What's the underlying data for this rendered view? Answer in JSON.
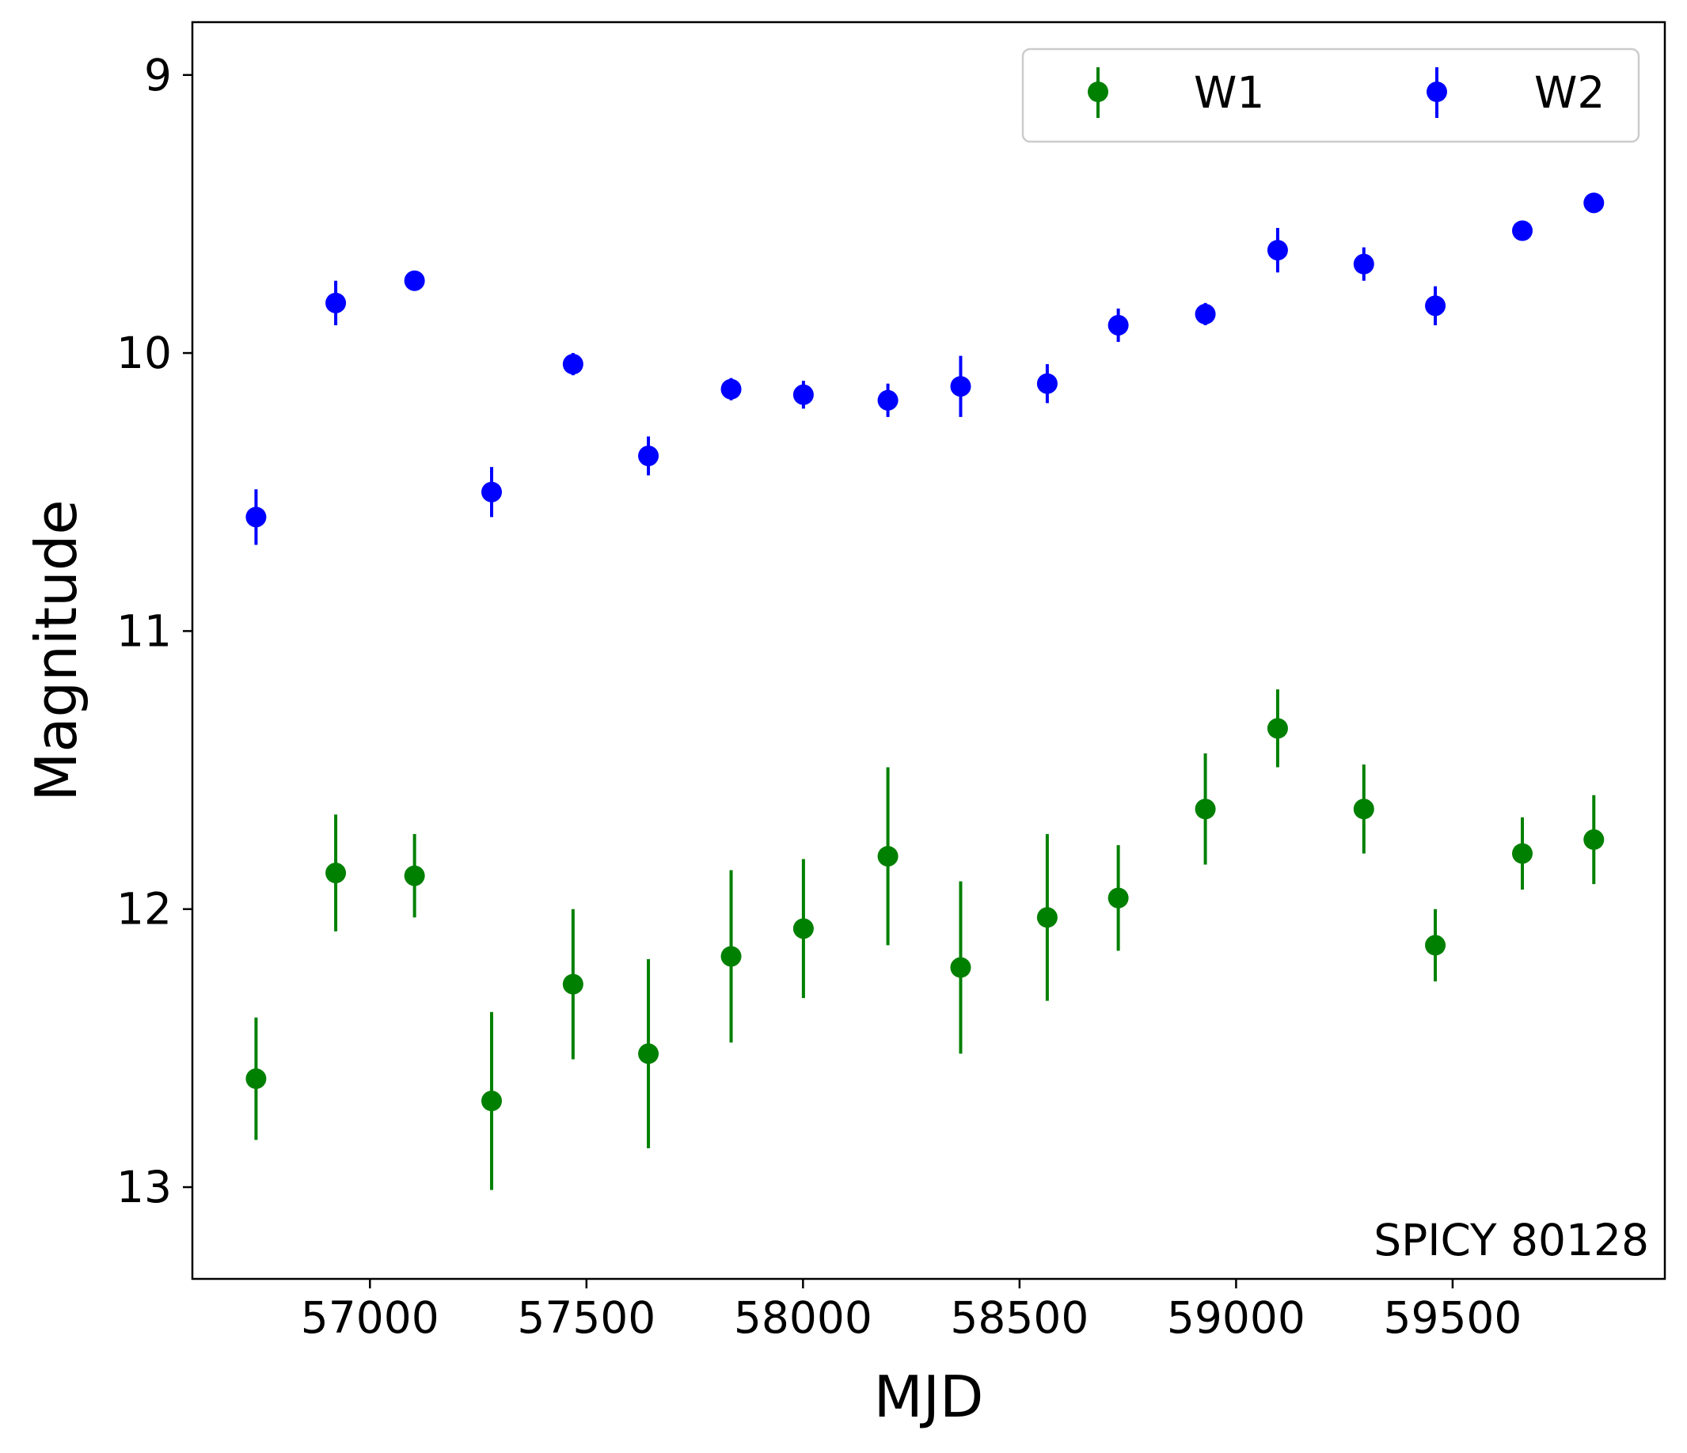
{
  "chart_data": {
    "type": "scatter",
    "title": "",
    "xlabel": "MJD",
    "ylabel": "Magnitude",
    "xlim": [
      56590,
      59990
    ],
    "ylim": [
      13.33,
      8.81
    ],
    "y_inverted": true,
    "xticks": [
      57000,
      57500,
      58000,
      58500,
      59000,
      59500
    ],
    "yticks": [
      9,
      10,
      11,
      12,
      13
    ],
    "grid": false,
    "legend": {
      "placement": "top-right",
      "columns": 2
    },
    "annotation": "SPICY 80128",
    "series": [
      {
        "name": "W1",
        "color": "#008000",
        "points": [
          {
            "x": 56737,
            "y": 12.61,
            "err": 0.22
          },
          {
            "x": 56921,
            "y": 11.87,
            "err": 0.21
          },
          {
            "x": 57103,
            "y": 11.88,
            "err": 0.15
          },
          {
            "x": 57281,
            "y": 12.69,
            "err": 0.32
          },
          {
            "x": 57469,
            "y": 12.27,
            "err": 0.27
          },
          {
            "x": 57643,
            "y": 12.52,
            "err": 0.34
          },
          {
            "x": 57834,
            "y": 12.17,
            "err": 0.31
          },
          {
            "x": 58001,
            "y": 12.07,
            "err": 0.25
          },
          {
            "x": 58196,
            "y": 11.81,
            "err": 0.32
          },
          {
            "x": 58364,
            "y": 12.21,
            "err": 0.31
          },
          {
            "x": 58564,
            "y": 12.03,
            "err": 0.3
          },
          {
            "x": 58728,
            "y": 11.96,
            "err": 0.19
          },
          {
            "x": 58929,
            "y": 11.64,
            "err": 0.2
          },
          {
            "x": 59096,
            "y": 11.35,
            "err": 0.14
          },
          {
            "x": 59295,
            "y": 11.64,
            "err": 0.16
          },
          {
            "x": 59460,
            "y": 12.13,
            "err": 0.13
          },
          {
            "x": 59661,
            "y": 11.8,
            "err": 0.13
          },
          {
            "x": 59826,
            "y": 11.75,
            "err": 0.16
          }
        ]
      },
      {
        "name": "W2",
        "color": "#0000ff",
        "points": [
          {
            "x": 56737,
            "y": 10.59,
            "err": 0.1
          },
          {
            "x": 56921,
            "y": 9.82,
            "err": 0.08
          },
          {
            "x": 57103,
            "y": 9.74,
            "err": 0.03
          },
          {
            "x": 57281,
            "y": 10.5,
            "err": 0.09
          },
          {
            "x": 57469,
            "y": 10.04,
            "err": 0.04
          },
          {
            "x": 57643,
            "y": 10.37,
            "err": 0.07
          },
          {
            "x": 57834,
            "y": 10.13,
            "err": 0.04
          },
          {
            "x": 58001,
            "y": 10.15,
            "err": 0.05
          },
          {
            "x": 58196,
            "y": 10.17,
            "err": 0.06
          },
          {
            "x": 58364,
            "y": 10.12,
            "err": 0.11
          },
          {
            "x": 58564,
            "y": 10.11,
            "err": 0.07
          },
          {
            "x": 58728,
            "y": 9.9,
            "err": 0.06
          },
          {
            "x": 58929,
            "y": 9.86,
            "err": 0.04
          },
          {
            "x": 59096,
            "y": 9.63,
            "err": 0.08
          },
          {
            "x": 59295,
            "y": 9.68,
            "err": 0.06
          },
          {
            "x": 59460,
            "y": 9.83,
            "err": 0.07
          },
          {
            "x": 59661,
            "y": 9.56,
            "err": 0.03
          },
          {
            "x": 59826,
            "y": 9.46,
            "err": 0.03
          }
        ]
      }
    ]
  }
}
